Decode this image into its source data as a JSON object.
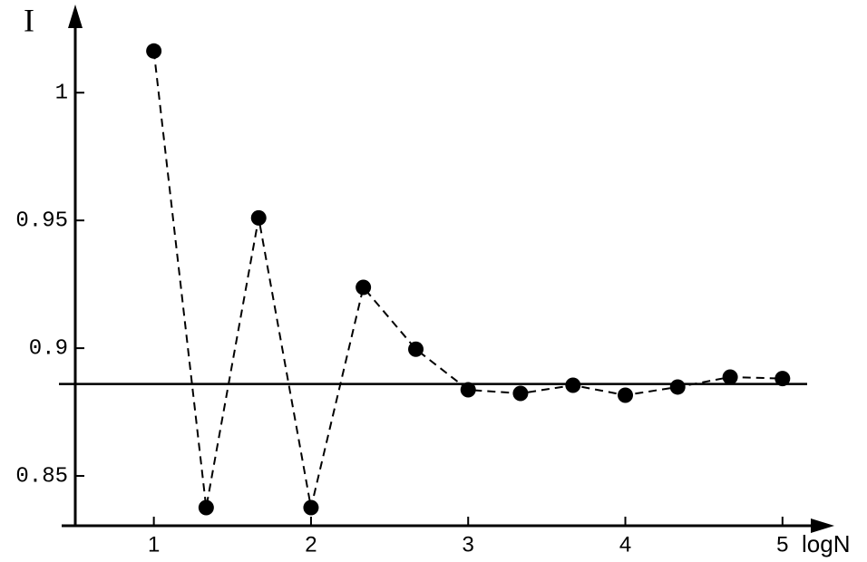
{
  "chart_data": {
    "type": "line",
    "y_label": "I",
    "x_label": "logN",
    "x": [
      1,
      1.333,
      1.667,
      2,
      2.333,
      2.667,
      3,
      3.333,
      3.667,
      4,
      4.333,
      4.667,
      5
    ],
    "values": [
      1.0163,
      0.8376,
      0.951,
      0.8376,
      0.9238,
      0.8996,
      0.8837,
      0.8823,
      0.8855,
      0.8816,
      0.8848,
      0.8887,
      0.8881
    ],
    "color": "#000000",
    "reference_line": 0.886,
    "xlim": [
      0.5,
      5.33
    ],
    "ylim": [
      0.8305,
      1.0345
    ],
    "xticks": [
      1,
      2,
      3,
      4,
      5
    ],
    "yticks": [
      0.85,
      0.9,
      0.95,
      1
    ]
  }
}
